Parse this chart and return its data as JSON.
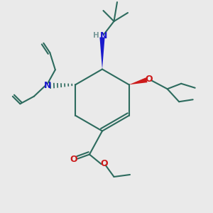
{
  "bg_color": "#eaeaea",
  "bond_color": "#2d6b5e",
  "n_color": "#1a1acc",
  "o_color": "#cc1a1a",
  "h_color": "#7a9a9a",
  "lw": 1.5,
  "figsize": [
    3.0,
    3.0
  ],
  "dpi": 100,
  "xlim": [
    0,
    10
  ],
  "ylim": [
    0,
    10
  ]
}
